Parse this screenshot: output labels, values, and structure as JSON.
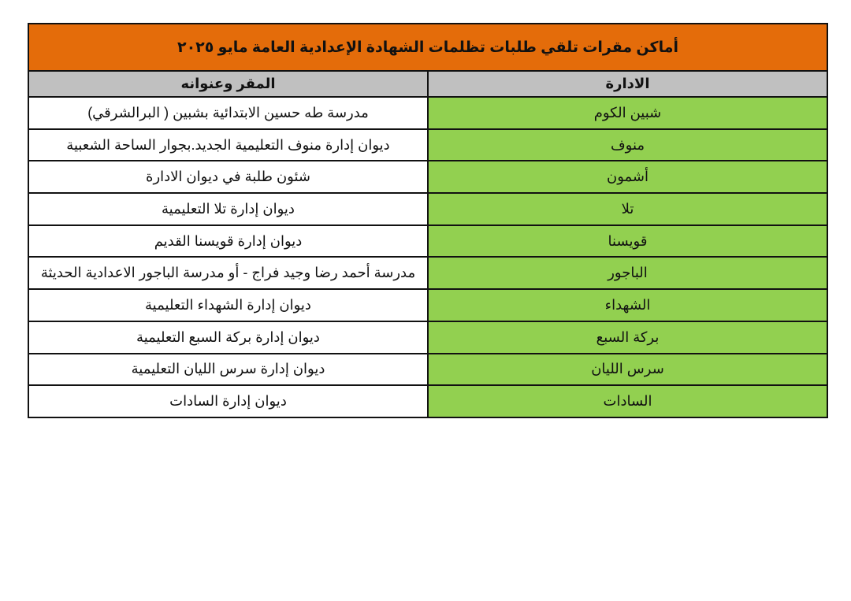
{
  "title": "أماكن مقرات تلقي طلبات تظلمات الشهادة الإعدادية العامة مايو ٢٠٢٥",
  "headers": {
    "department": "الادارة",
    "location": "المقر وعنوانه"
  },
  "colors": {
    "title_bg": "#E46C0A",
    "header_bg": "#C0C0C0",
    "department_bg": "#92D050"
  },
  "rows": [
    {
      "department": "شبين الكوم",
      "location": "مدرسة طه حسين الابتدائية بشبين ( البرالشرقي)"
    },
    {
      "department": "منوف",
      "location": "ديوان إدارة منوف التعليمية الجديد.بجوار الساحة الشعبية"
    },
    {
      "department": "أشمون",
      "location": "شئون طلبة في ديوان الادارة"
    },
    {
      "department": "تلا",
      "location": "ديوان إدارة تلا التعليمية"
    },
    {
      "department": "قويسنا",
      "location": "ديوان إدارة قويسنا القديم"
    },
    {
      "department": "الباجور",
      "location": "مدرسة أحمد رضا وجيد فراج - أو مدرسة الباجور الاعدادية الحديثة"
    },
    {
      "department": "الشهداء",
      "location": "ديوان إدارة الشهداء التعليمية"
    },
    {
      "department": "بركة السبع",
      "location": "ديوان إدارة بركة السبع التعليمية"
    },
    {
      "department": "سرس الليان",
      "location": "ديوان إدارة سرس الليان التعليمية"
    },
    {
      "department": "السادات",
      "location": "ديوان إدارة السادات"
    }
  ]
}
